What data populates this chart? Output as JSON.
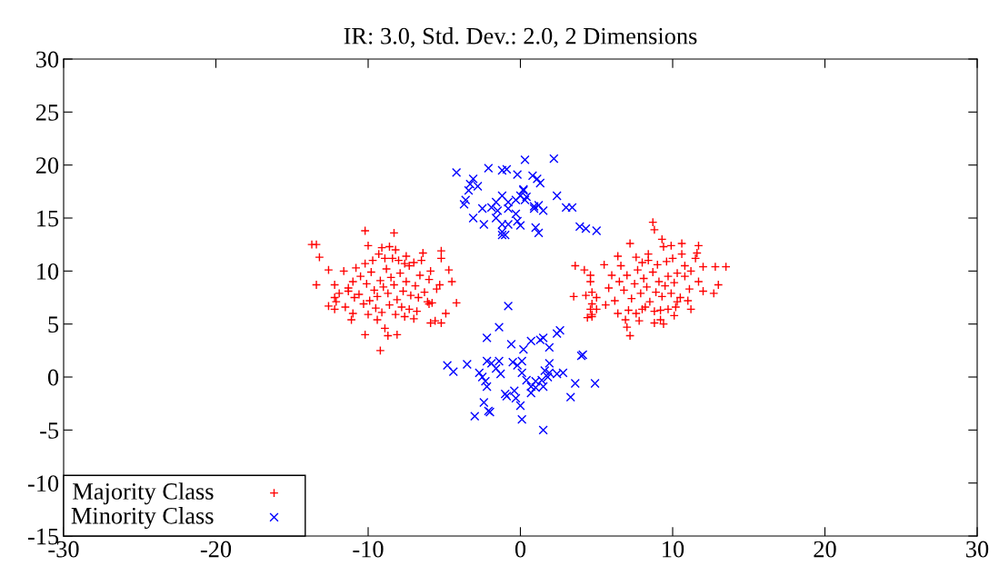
{
  "chart_data": {
    "type": "scatter",
    "title": "IR: 3.0, Std. Dev.: 2.0, 2 Dimensions",
    "xlim": [
      -30,
      30
    ],
    "xticks": [
      -30,
      -20,
      -10,
      0,
      10,
      20,
      30
    ],
    "ylim": [
      -15,
      30
    ],
    "yticks": [
      -15,
      -10,
      -5,
      0,
      5,
      10,
      15,
      20,
      25,
      30
    ],
    "grid": false,
    "legend": "bottom left",
    "series": [
      {
        "name": "Majority Class",
        "color": "#ff0000",
        "marker": "plus",
        "x": [
          -13.7,
          -13.4,
          -13.2,
          -12.6,
          -13.4,
          -12.2,
          -12.2,
          -12.1,
          -12.6,
          -12.2,
          -11.5,
          -11.0,
          -11.1,
          -10.2,
          -9.2,
          -8.7,
          -8.1,
          -10.2,
          -10.2,
          -8.3,
          -10.0,
          -9.1,
          -8.6,
          -8.2,
          -8.4,
          -7.5,
          -7.0,
          -6.4,
          -5.2,
          -5.2,
          -5.9,
          -4.7,
          -4.5,
          -4.2,
          -5.3,
          -5.5,
          -6.0,
          -4.9,
          -5.2,
          -5.6,
          -5.9,
          -7.6,
          -7.3,
          -6.7,
          -6.1,
          -11.3,
          -10.9,
          -11.3,
          -10.5,
          -10.1,
          -9.8,
          -9.6,
          -9.4,
          -9.2,
          -9.0,
          -8.8,
          -8.7,
          -8.5,
          -8.3,
          -8.1,
          -7.9,
          -7.7,
          -7.5,
          -7.3,
          -10.8,
          -10.6,
          -10.3,
          -9.9,
          -9.5,
          -9.1,
          -8.6,
          -8.2,
          -7.8,
          -7.2,
          -6.9,
          -6.6,
          -6.3,
          -6.0,
          -11.0,
          -11.6,
          -11.9,
          -9.7,
          -9.3,
          -8.9,
          -8.0,
          -7.6,
          -6.8,
          -5.8,
          -9.4,
          -8.9,
          -10.0,
          -7.0,
          -6.5,
          8.7,
          8.8,
          9.3,
          7.2,
          9.4,
          9.9,
          10.6,
          11.7,
          11.6,
          6.4,
          7.6,
          8.4,
          10.0,
          10.6,
          10.8,
          12.0,
          12.8,
          13.5,
          3.6,
          4.2,
          4.6,
          4.6,
          3.5,
          4.3,
          4.7,
          5.0,
          4.7,
          4.6,
          5.0,
          4.7,
          4.4,
          4.7,
          7.0,
          7.2,
          6.9,
          8.0,
          8.8,
          9.2,
          13.0,
          12.7,
          12.0,
          11.7,
          11.1,
          11.2,
          10.3,
          9.7,
          10.1,
          9.2,
          6.5,
          6.8,
          7.0,
          7.3,
          7.5,
          7.7,
          7.9,
          8.1,
          8.3,
          8.5,
          8.7,
          8.9,
          9.1,
          9.3,
          9.5,
          9.7,
          9.9,
          10.1,
          10.3,
          10.5,
          6.2,
          6.0,
          5.8,
          7.1,
          7.6,
          8.2,
          8.8,
          9.0,
          9.6,
          10.8,
          11.2,
          5.5,
          6.6,
          8.4,
          10.2,
          11.0,
          7.8,
          6.4,
          5.6,
          9.4,
          11.5,
          8.0
        ],
        "values": [
          12.5,
          12.5,
          11.3,
          10.1,
          8.7,
          8.7,
          7.5,
          7.1,
          6.7,
          6.4,
          6.6,
          6.0,
          5.4,
          4.0,
          2.5,
          3.9,
          4.0,
          10.7,
          13.8,
          13.6,
          12.4,
          12.2,
          12.3,
          12.0,
          11.2,
          11.4,
          10.8,
          11.7,
          11.9,
          11.2,
          10.0,
          10.1,
          9.0,
          7.0,
          8.7,
          8.3,
          6.9,
          6.0,
          5.1,
          5.3,
          5.1,
          5.7,
          6.4,
          7.5,
          7.1,
          8.4,
          7.5,
          8.1,
          9.5,
          8.8,
          9.9,
          8.2,
          7.6,
          9.1,
          8.5,
          10.2,
          7.9,
          9.4,
          8.7,
          7.3,
          9.8,
          8.1,
          9.0,
          10.5,
          10.3,
          7.8,
          6.9,
          7.2,
          6.5,
          6.1,
          6.8,
          5.9,
          6.6,
          7.7,
          8.6,
          9.6,
          8.0,
          9.2,
          9.0,
          10.0,
          7.9,
          11.0,
          11.6,
          11.2,
          11.0,
          10.7,
          6.2,
          7.0,
          5.4,
          4.6,
          5.9,
          5.5,
          11.0,
          14.6,
          13.9,
          13.0,
          12.6,
          12.3,
          12.4,
          12.6,
          12.4,
          11.7,
          11.4,
          11.3,
          11.0,
          11.2,
          11.6,
          10.5,
          10.4,
          10.4,
          10.4,
          10.5,
          10.1,
          9.6,
          9.0,
          7.6,
          7.7,
          8.0,
          7.5,
          6.9,
          6.4,
          6.4,
          5.9,
          5.6,
          5.7,
          4.7,
          3.9,
          5.4,
          6.4,
          5.1,
          5.4,
          8.7,
          7.9,
          8.1,
          9.0,
          8.3,
          6.4,
          7.1,
          6.4,
          5.8,
          6.3,
          9.0,
          8.2,
          9.6,
          7.4,
          8.8,
          10.1,
          7.9,
          9.3,
          8.5,
          7.1,
          9.9,
          8.0,
          9.0,
          7.6,
          8.6,
          9.5,
          7.9,
          8.9,
          9.8,
          7.5,
          7.2,
          9.6,
          8.4,
          6.3,
          6.0,
          6.6,
          6.2,
          10.6,
          10.9,
          9.5,
          10.0,
          10.6,
          10.5,
          11.6,
          6.6,
          7.2,
          5.3,
          6.0,
          6.8,
          5.0,
          11.2,
          10.8
        ]
      },
      {
        "name": "Minority Class",
        "color": "#0000ff",
        "marker": "cross",
        "x": [
          -4.2,
          -2.1,
          -1.2,
          -0.9,
          -0.2,
          0.3,
          2.2,
          0.8,
          1.1,
          1.3,
          -3.1,
          -3.3,
          -3.4,
          -2.8,
          -3.7,
          -3.6,
          -2.5,
          -1.9,
          -1.6,
          -1.5,
          -1.6,
          -1.2,
          -0.8,
          -0.8,
          -0.3,
          0.0,
          0.2,
          0.3,
          0.2,
          0.4,
          0.9,
          1.2,
          1.5,
          0.9,
          -1.2,
          -1.2,
          -1.2,
          -0.2,
          0.0,
          1.0,
          1.2,
          2.4,
          3.0,
          3.4,
          3.9,
          4.3,
          5.0,
          -2.4,
          -0.8,
          -1.0,
          -3.1,
          -0.3,
          -0.8,
          -1.4,
          -2.2,
          -0.6,
          0.2,
          0.7,
          1.3,
          1.5,
          2.4,
          2.6,
          1.9,
          0.1,
          -4.8,
          -4.4,
          -3.5,
          -2.2,
          -1.9,
          -1.6,
          -1.4,
          -1.3,
          -2.7,
          -2.5,
          -2.3,
          -2.2,
          -0.5,
          -0.2,
          0.1,
          0.4,
          0.7,
          1.0,
          1.4,
          1.8,
          1.6,
          1.9,
          1.9,
          2.4,
          2.8,
          4.0,
          4.1,
          3.6,
          4.9,
          3.3,
          -2.4,
          -2.1,
          -2.0,
          -3.0,
          -1.0,
          -0.9,
          -0.4,
          -0.3,
          0.0,
          0.1,
          1.5,
          0.7,
          1.0,
          1.5
        ],
        "values": [
          19.3,
          19.7,
          19.5,
          19.6,
          19.1,
          20.5,
          20.6,
          19.0,
          18.7,
          18.3,
          18.7,
          18.2,
          17.6,
          18.0,
          16.3,
          16.7,
          15.9,
          16.0,
          16.5,
          15.7,
          15.0,
          17.1,
          16.5,
          15.9,
          16.7,
          17.1,
          17.6,
          16.7,
          17.7,
          17.0,
          15.9,
          16.2,
          15.7,
          16.1,
          14.4,
          13.7,
          13.4,
          14.7,
          14.3,
          14.1,
          13.6,
          17.1,
          16.0,
          16.0,
          14.2,
          14.0,
          13.8,
          14.4,
          14.4,
          13.4,
          15.0,
          15.4,
          6.7,
          4.7,
          3.7,
          3.1,
          2.6,
          3.4,
          3.5,
          3.7,
          4.1,
          4.4,
          2.8,
          1.5,
          1.1,
          0.5,
          1.2,
          1.5,
          1.3,
          0.8,
          1.5,
          0.3,
          0.4,
          0.0,
          -0.4,
          -0.9,
          1.4,
          1.1,
          0.4,
          -0.3,
          -0.9,
          -0.4,
          -0.3,
          0.0,
          0.6,
          0.4,
          1.3,
          0.3,
          0.4,
          2.0,
          2.1,
          -0.6,
          -0.6,
          -1.9,
          -2.4,
          -3.2,
          -3.3,
          -3.7,
          -1.6,
          -1.8,
          -1.3,
          -2.0,
          -2.7,
          -4.0,
          -5.0,
          -1.5,
          -1.0,
          -0.9
        ]
      }
    ]
  }
}
